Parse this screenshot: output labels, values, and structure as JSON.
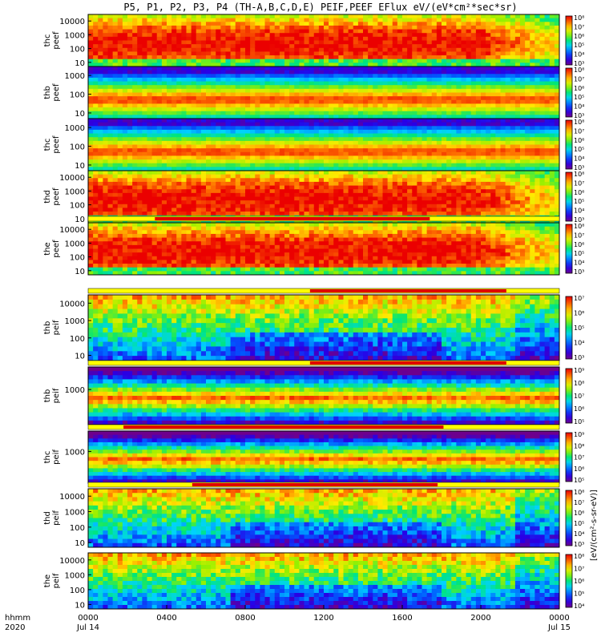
{
  "title": "P5, P1, P2, P3, P4 (TH-A,B,C,D,E) PEIF,PEEF EFlux eV/(eV*cm²*sec*sr)",
  "cbar_title": "[eV/(cm²-s-sr-eV)]",
  "chart_data": {
    "type": "heatmap",
    "colormap": "rainbow (purple-blue-cyan-green-yellow-orange-red)",
    "x": {
      "label_top": "hhmm",
      "label_bottom": "2020",
      "range_hours": [
        0,
        24
      ],
      "ticks": [
        "0000",
        "0400",
        "0800",
        "1200",
        "1600",
        "2000",
        "0000"
      ],
      "tick_hours": [
        0,
        4,
        8,
        12,
        16,
        20,
        24
      ],
      "date_labels": [
        "Jul 14",
        "Jul 15"
      ]
    },
    "panels": [
      {
        "probe": "thc",
        "label_lines": [
          "thc",
          "peef"
        ],
        "kind": "electron",
        "yticks": [
          "10",
          "100",
          "1000",
          "10000"
        ],
        "ylim": [
          5,
          30000
        ],
        "cbar_ticks": [
          "10³",
          "10⁴",
          "10⁵",
          "10⁶",
          "10⁷",
          "10⁸"
        ],
        "cbar_range": [
          3,
          8
        ],
        "flag_bar": null
      },
      {
        "probe": "thb",
        "label_lines": [
          "thb",
          "peef"
        ],
        "kind": "electron",
        "yticks": [
          "10",
          "100",
          "1000"
        ],
        "ylim": [
          5,
          3000
        ],
        "cbar_ticks": [
          "10³",
          "10⁴",
          "10⁵",
          "10⁶",
          "10⁷",
          "10⁸"
        ],
        "cbar_range": [
          3,
          8
        ],
        "flag_bar": null
      },
      {
        "probe": "thc",
        "label_lines": [
          "thc",
          "peef"
        ],
        "kind": "electron",
        "yticks": [
          "10",
          "100",
          "1000"
        ],
        "ylim": [
          5,
          3000
        ],
        "cbar_ticks": [
          "10³",
          "10⁴",
          "10⁵",
          "10⁶",
          "10⁷",
          "10⁸"
        ],
        "cbar_range": [
          3,
          8
        ],
        "flag_bar": null
      },
      {
        "probe": "thd",
        "label_lines": [
          "thd",
          "peef"
        ],
        "kind": "electron",
        "yticks": [
          "10",
          "100",
          "1000",
          "10000"
        ],
        "ylim": [
          5,
          30000
        ],
        "cbar_ticks": [
          "10³",
          "10⁴",
          "10⁵",
          "10⁶",
          "10⁷",
          "10⁸"
        ],
        "cbar_range": [
          3,
          8
        ],
        "flag_bar": null
      },
      {
        "probe": "the",
        "label_lines": [
          "the",
          "peef"
        ],
        "kind": "electron",
        "yticks": [
          "10",
          "100",
          "1000",
          "10000"
        ],
        "ylim": [
          5,
          30000
        ],
        "cbar_ticks": [
          "10³",
          "10⁴",
          "10⁵",
          "10⁶",
          "10⁷",
          "10⁸"
        ],
        "cbar_range": [
          3,
          8
        ],
        "flag_bar": [
          3.4,
          17.4
        ]
      },
      {
        "probe": "thb",
        "label_lines": [
          "thb",
          "peif"
        ],
        "kind": "ion",
        "yticks": [
          "10",
          "100",
          "1000",
          "10000"
        ],
        "ylim": [
          5,
          30000
        ],
        "cbar_ticks": [
          "10³",
          "10⁴",
          "10⁵",
          "10⁶",
          "10⁷"
        ],
        "cbar_range": [
          3,
          7
        ],
        "flag_bar": [
          11.3,
          21.3
        ]
      },
      {
        "probe": "thb",
        "label_lines": [
          "thb",
          "peif"
        ],
        "kind": "ion",
        "yticks": [
          "1000"
        ],
        "ylim": [
          5,
          30000
        ],
        "cbar_ticks": [
          "10⁵",
          "10⁶",
          "10⁷",
          "10⁸",
          "10⁹"
        ],
        "cbar_range": [
          5,
          9
        ],
        "flag_bar": [
          11.3,
          21.3
        ]
      },
      {
        "probe": "thc",
        "label_lines": [
          "thc",
          "peif"
        ],
        "kind": "ion",
        "yticks": [
          "1000"
        ],
        "ylim": [
          5,
          30000
        ],
        "cbar_ticks": [
          "10⁵",
          "10⁶",
          "10⁷",
          "10⁸",
          "10⁹"
        ],
        "cbar_range": [
          5,
          9
        ],
        "flag_bar": [
          1.8,
          18.1
        ]
      },
      {
        "probe": "thd",
        "label_lines": [
          "thd",
          "peif"
        ],
        "kind": "ion",
        "yticks": [
          "10",
          "100",
          "1000",
          "10000"
        ],
        "ylim": [
          5,
          30000
        ],
        "cbar_ticks": [
          "10³",
          "10⁴",
          "10⁵",
          "10⁶",
          "10⁷",
          "10⁸"
        ],
        "cbar_range": [
          3,
          8
        ],
        "flag_bar": [
          5.3,
          17.8
        ]
      },
      {
        "probe": "the",
        "label_lines": [
          "the",
          "peif"
        ],
        "kind": "ion",
        "yticks": [
          "10",
          "100",
          "1000",
          "10000"
        ],
        "ylim": [
          5,
          30000
        ],
        "cbar_ticks": [
          "10⁴",
          "10⁵",
          "10⁶",
          "10⁷",
          "10⁸"
        ],
        "cbar_range": [
          4,
          8
        ],
        "flag_bar": null
      }
    ]
  }
}
